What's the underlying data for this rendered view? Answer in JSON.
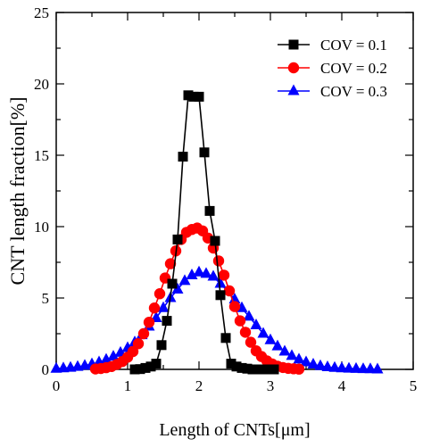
{
  "chart_data": {
    "type": "scatter",
    "xlabel": "Length of  CNTs[μm]",
    "ylabel": "CNT length fraction[%]",
    "xlim": [
      0,
      5
    ],
    "ylim": [
      0,
      25
    ],
    "xticks": [
      "0",
      "1",
      "2",
      "3",
      "4",
      "5"
    ],
    "yticks": [
      "0",
      "5",
      "10",
      "15",
      "20",
      "25"
    ],
    "grid": false,
    "legend_position": "top-right",
    "series": [
      {
        "name": "COV = 0.1",
        "color": "#000000",
        "marker": "square",
        "x": [
          1.1,
          1.175,
          1.25,
          1.325,
          1.4,
          1.475,
          1.55,
          1.625,
          1.7,
          1.775,
          1.85,
          1.925,
          2.0,
          2.075,
          2.15,
          2.225,
          2.3,
          2.375,
          2.45,
          2.525,
          2.6,
          2.675,
          2.75,
          2.825,
          2.9,
          2.975,
          3.05
        ],
        "y": [
          0.0,
          0.02,
          0.1,
          0.2,
          0.4,
          1.7,
          3.4,
          6.0,
          9.1,
          14.9,
          19.2,
          19.1,
          19.1,
          15.2,
          11.1,
          9.0,
          5.2,
          2.2,
          0.4,
          0.2,
          0.1,
          0.05,
          0.0,
          0.0,
          0.0,
          0.0,
          0.0
        ]
      },
      {
        "name": "COV = 0.2",
        "color": "#ff0000",
        "marker": "circle",
        "x": [
          0.55,
          0.625,
          0.7,
          0.775,
          0.85,
          0.925,
          1.0,
          1.075,
          1.15,
          1.225,
          1.3,
          1.375,
          1.45,
          1.525,
          1.6,
          1.675,
          1.75,
          1.825,
          1.9,
          1.975,
          2.05,
          2.125,
          2.2,
          2.275,
          2.35,
          2.425,
          2.5,
          2.575,
          2.65,
          2.725,
          2.8,
          2.875,
          2.95,
          3.025,
          3.1,
          3.175,
          3.25,
          3.325,
          3.4
        ],
        "y": [
          0.03,
          0.06,
          0.12,
          0.2,
          0.35,
          0.55,
          0.85,
          1.25,
          1.8,
          2.5,
          3.3,
          4.3,
          5.3,
          6.4,
          7.4,
          8.3,
          9.1,
          9.6,
          9.8,
          9.9,
          9.7,
          9.2,
          8.5,
          7.6,
          6.6,
          5.5,
          4.4,
          3.4,
          2.6,
          1.9,
          1.3,
          0.9,
          0.6,
          0.38,
          0.22,
          0.13,
          0.07,
          0.04,
          0.02
        ]
      },
      {
        "name": "COV = 0.3",
        "color": "#0000ff",
        "marker": "triangle",
        "x": [
          0.0,
          0.1,
          0.2,
          0.3,
          0.4,
          0.5,
          0.6,
          0.7,
          0.8,
          0.9,
          1.0,
          1.1,
          1.2,
          1.3,
          1.4,
          1.5,
          1.6,
          1.7,
          1.8,
          1.9,
          2.0,
          2.1,
          2.2,
          2.3,
          2.4,
          2.5,
          2.6,
          2.7,
          2.8,
          2.9,
          3.0,
          3.1,
          3.2,
          3.3,
          3.4,
          3.5,
          3.6,
          3.7,
          3.8,
          3.9,
          4.0,
          4.1,
          4.2,
          4.3,
          4.4,
          4.5
        ],
        "y": [
          0.05,
          0.08,
          0.12,
          0.18,
          0.26,
          0.37,
          0.5,
          0.68,
          0.9,
          1.17,
          1.5,
          1.9,
          2.4,
          3.0,
          3.6,
          4.3,
          5.0,
          5.6,
          6.2,
          6.6,
          6.8,
          6.7,
          6.5,
          6.0,
          5.5,
          4.9,
          4.3,
          3.7,
          3.1,
          2.5,
          2.05,
          1.62,
          1.25,
          0.95,
          0.7,
          0.5,
          0.35,
          0.24,
          0.16,
          0.11,
          0.08,
          0.06,
          0.04,
          0.03,
          0.02,
          0.0
        ]
      }
    ]
  }
}
